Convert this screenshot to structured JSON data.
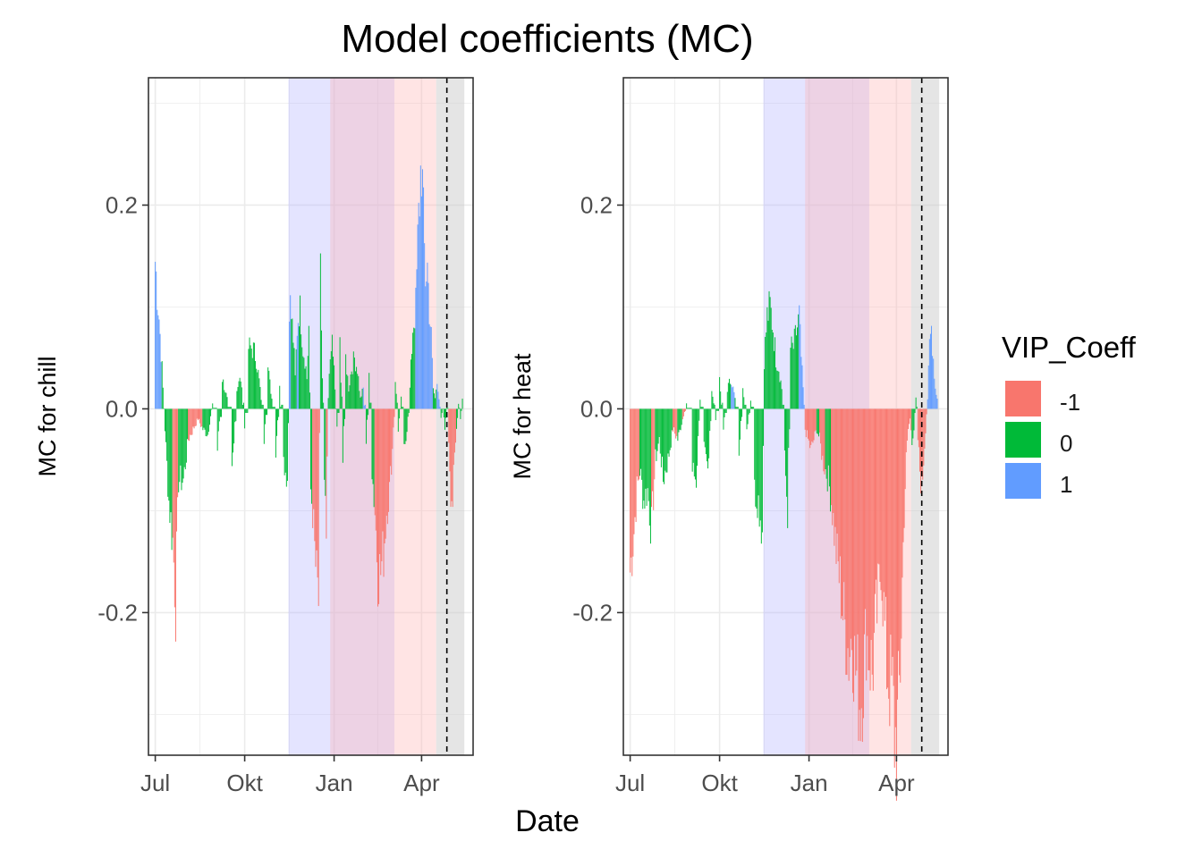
{
  "title": "Model coefficients (MC)",
  "xlabel": "Date",
  "legend": {
    "title": "VIP_Coeff",
    "placement": "right",
    "entries": [
      {
        "label": "-1",
        "color": "#F8766D"
      },
      {
        "label": "0",
        "color": "#00BA38"
      },
      {
        "label": "1",
        "color": "#619CFF"
      }
    ]
  },
  "colors": {
    "chill_phase": "#b3b3ff",
    "heat_phase": "#ffb3b3",
    "grey_band": "#cccccc",
    "grid": "#ebebeb",
    "panel_border": "#333333"
  },
  "chart_data": [
    {
      "type": "bar",
      "ylabel": "MC for chill",
      "x_unit": "day of year relative to Jan 1",
      "xlim": [
        -191,
        143
      ],
      "ylim": [
        -0.34,
        0.325
      ],
      "x_ticks": [
        {
          "label": "Jul",
          "x": -184
        },
        {
          "label": "Okt",
          "x": -92
        },
        {
          "label": "Jan",
          "x": 0
        },
        {
          "label": "Apr",
          "x": 90
        }
      ],
      "y_ticks": [
        {
          "label": "-0.2",
          "y": -0.2
        },
        {
          "label": "0.0",
          "y": 0
        },
        {
          "label": "0.2",
          "y": 0.2
        }
      ],
      "shaded_periods": [
        {
          "name": "chill",
          "from": -47,
          "to": 62
        },
        {
          "name": "heat",
          "from": -4,
          "to": 105
        },
        {
          "name": "grey",
          "from": 105,
          "to": 134
        }
      ],
      "vline_x": 116,
      "series_anchors": [
        [
          -184,
          0.145,
          1
        ],
        [
          -180,
          0.09,
          1
        ],
        [
          -177,
          0.04,
          0
        ],
        [
          -174,
          -0.02,
          0
        ],
        [
          -170,
          -0.09,
          0
        ],
        [
          -166,
          -0.13,
          -1
        ],
        [
          -163,
          -0.19,
          -1
        ],
        [
          -160,
          -0.07,
          0
        ],
        [
          -155,
          -0.07,
          0
        ],
        [
          -150,
          -0.03,
          -1
        ],
        [
          -145,
          -0.02,
          -1
        ],
        [
          -140,
          -0.01,
          -1
        ],
        [
          -135,
          -0.02,
          0
        ],
        [
          -130,
          -0.025,
          0
        ],
        [
          -125,
          0.005,
          0
        ],
        [
          -120,
          -0.04,
          0
        ],
        [
          -115,
          0.03,
          0
        ],
        [
          -110,
          0.01,
          0
        ],
        [
          -105,
          -0.06,
          0
        ],
        [
          -100,
          0.02,
          0
        ],
        [
          -96,
          0.03,
          0
        ],
        [
          -92,
          -0.02,
          0
        ],
        [
          -88,
          0.06,
          0
        ],
        [
          -84,
          0.06,
          0
        ],
        [
          -80,
          0.05,
          0
        ],
        [
          -76,
          0.02,
          0
        ],
        [
          -72,
          -0.03,
          0
        ],
        [
          -68,
          0.04,
          0
        ],
        [
          -64,
          0.01,
          0
        ],
        [
          -60,
          -0.04,
          0
        ],
        [
          -56,
          0.02,
          0
        ],
        [
          -52,
          -0.05,
          0
        ],
        [
          -48,
          -0.07,
          0
        ],
        [
          -46,
          0.11,
          1
        ],
        [
          -44,
          0.09,
          0
        ],
        [
          -42,
          0.07,
          0
        ],
        [
          -40,
          0.03,
          0
        ],
        [
          -38,
          0.08,
          1
        ],
        [
          -36,
          0.1,
          0
        ],
        [
          -34,
          0.09,
          0
        ],
        [
          -32,
          0.06,
          0
        ],
        [
          -30,
          0.05,
          0
        ],
        [
          -28,
          0.03,
          0
        ],
        [
          -26,
          0.08,
          0
        ],
        [
          -24,
          -0.08,
          0
        ],
        [
          -22,
          -0.1,
          -1
        ],
        [
          -20,
          -0.14,
          -1
        ],
        [
          -18,
          -0.17,
          -1
        ],
        [
          -16,
          -0.19,
          -1
        ],
        [
          -14,
          0.13,
          0
        ],
        [
          -12,
          0.03,
          0
        ],
        [
          -10,
          -0.08,
          0
        ],
        [
          -8,
          -0.13,
          -1
        ],
        [
          -6,
          0.01,
          0
        ],
        [
          -3,
          0.07,
          0
        ],
        [
          0,
          0.04,
          0
        ],
        [
          3,
          -0.02,
          0
        ],
        [
          6,
          0.06,
          0
        ],
        [
          9,
          -0.05,
          0
        ],
        [
          12,
          0.05,
          0
        ],
        [
          15,
          0.02,
          0
        ],
        [
          18,
          0.04,
          0
        ],
        [
          21,
          0.05,
          0
        ],
        [
          24,
          0.04,
          0
        ],
        [
          27,
          0.01,
          0
        ],
        [
          30,
          0.02,
          1
        ],
        [
          33,
          -0.03,
          0
        ],
        [
          36,
          0.03,
          0
        ],
        [
          39,
          -0.06,
          0
        ],
        [
          42,
          -0.1,
          -1
        ],
        [
          45,
          -0.16,
          -1
        ],
        [
          48,
          -0.16,
          -1
        ],
        [
          51,
          -0.14,
          -1
        ],
        [
          54,
          -0.1,
          -1
        ],
        [
          57,
          -0.08,
          -1
        ],
        [
          60,
          -0.04,
          -1
        ],
        [
          63,
          0.03,
          0
        ],
        [
          66,
          -0.02,
          0
        ],
        [
          69,
          0.01,
          0
        ],
        [
          72,
          -0.04,
          0
        ],
        [
          75,
          -0.02,
          0
        ],
        [
          78,
          0.02,
          0
        ],
        [
          81,
          0.08,
          0
        ],
        [
          84,
          0.1,
          1
        ],
        [
          86,
          0.16,
          1
        ],
        [
          88,
          0.21,
          1
        ],
        [
          90,
          0.25,
          1
        ],
        [
          92,
          0.18,
          1
        ],
        [
          94,
          0.13,
          1
        ],
        [
          96,
          0.14,
          1
        ],
        [
          98,
          0.1,
          1
        ],
        [
          100,
          0.07,
          1
        ],
        [
          102,
          0.02,
          0
        ],
        [
          104,
          0.01,
          0
        ],
        [
          106,
          0.03,
          1
        ],
        [
          108,
          0.01,
          1
        ],
        [
          110,
          -0.01,
          0
        ],
        [
          112,
          0.0,
          0
        ],
        [
          114,
          -0.02,
          0
        ],
        [
          116,
          0.005,
          0
        ],
        [
          118,
          -0.03,
          -1
        ],
        [
          120,
          -0.08,
          -1
        ],
        [
          122,
          -0.09,
          -1
        ],
        [
          124,
          -0.05,
          -1
        ],
        [
          126,
          -0.02,
          0
        ],
        [
          128,
          0.005,
          0
        ],
        [
          130,
          -0.01,
          0
        ],
        [
          132,
          0.01,
          0
        ]
      ]
    },
    {
      "type": "bar",
      "ylabel": "MC for heat",
      "x_unit": "day of year relative to Jan 1",
      "xlim": [
        -191,
        143
      ],
      "ylim": [
        -0.34,
        0.325
      ],
      "x_ticks": [
        {
          "label": "Jul",
          "x": -184
        },
        {
          "label": "Okt",
          "x": -92
        },
        {
          "label": "Jan",
          "x": 0
        },
        {
          "label": "Apr",
          "x": 90
        }
      ],
      "y_ticks": [
        {
          "label": "-0.2",
          "y": -0.2
        },
        {
          "label": "0.0",
          "y": 0
        },
        {
          "label": "0.2",
          "y": 0.2
        }
      ],
      "shaded_periods": [
        {
          "name": "chill",
          "from": -47,
          "to": 62
        },
        {
          "name": "heat",
          "from": -4,
          "to": 105
        },
        {
          "name": "grey",
          "from": 105,
          "to": 134
        }
      ],
      "vline_x": 116,
      "series_anchors": [
        [
          -184,
          -0.16,
          -1
        ],
        [
          -180,
          -0.12,
          -1
        ],
        [
          -177,
          -0.08,
          -1
        ],
        [
          -174,
          -0.06,
          0
        ],
        [
          -170,
          -0.09,
          0
        ],
        [
          -166,
          -0.08,
          0
        ],
        [
          -162,
          -0.12,
          -1
        ],
        [
          -158,
          -0.05,
          0
        ],
        [
          -154,
          -0.03,
          0
        ],
        [
          -150,
          -0.07,
          0
        ],
        [
          -145,
          -0.05,
          0
        ],
        [
          -140,
          -0.02,
          -1
        ],
        [
          -135,
          -0.03,
          0
        ],
        [
          -130,
          -0.01,
          -1
        ],
        [
          -126,
          0.005,
          0
        ],
        [
          -120,
          -0.06,
          0
        ],
        [
          -116,
          -0.07,
          0
        ],
        [
          -112,
          0.01,
          0
        ],
        [
          -108,
          -0.04,
          0
        ],
        [
          -104,
          -0.06,
          0
        ],
        [
          -100,
          0.02,
          0
        ],
        [
          -96,
          -0.01,
          0
        ],
        [
          -92,
          0.03,
          0
        ],
        [
          -88,
          -0.02,
          0
        ],
        [
          -84,
          0.02,
          0
        ],
        [
          -80,
          0.03,
          1
        ],
        [
          -76,
          0.01,
          0
        ],
        [
          -72,
          -0.04,
          0
        ],
        [
          -68,
          0.02,
          0
        ],
        [
          -64,
          -0.02,
          0
        ],
        [
          -60,
          0.01,
          0
        ],
        [
          -56,
          -0.08,
          0
        ],
        [
          -52,
          -0.09,
          0
        ],
        [
          -48,
          -0.12,
          0
        ],
        [
          -46,
          0.05,
          0
        ],
        [
          -43,
          0.09,
          0
        ],
        [
          -40,
          0.1,
          0
        ],
        [
          -37,
          0.08,
          0
        ],
        [
          -34,
          0.05,
          0
        ],
        [
          -31,
          0.04,
          0
        ],
        [
          -28,
          0.02,
          0
        ],
        [
          -25,
          -0.05,
          0
        ],
        [
          -22,
          -0.1,
          0
        ],
        [
          -19,
          0.06,
          0
        ],
        [
          -16,
          0.06,
          0
        ],
        [
          -14,
          0.07,
          0
        ],
        [
          -12,
          0.08,
          0
        ],
        [
          -10,
          0.09,
          1
        ],
        [
          -8,
          0.05,
          1
        ],
        [
          -6,
          0.02,
          1
        ],
        [
          -4,
          -0.02,
          -1
        ],
        [
          -1,
          -0.03,
          -1
        ],
        [
          2,
          -0.04,
          -1
        ],
        [
          5,
          -0.03,
          -1
        ],
        [
          8,
          -0.02,
          0
        ],
        [
          11,
          -0.03,
          -1
        ],
        [
          14,
          -0.05,
          -1
        ],
        [
          17,
          -0.06,
          0
        ],
        [
          20,
          -0.07,
          0
        ],
        [
          23,
          -0.09,
          -1
        ],
        [
          26,
          -0.12,
          -1
        ],
        [
          29,
          -0.15,
          -1
        ],
        [
          32,
          -0.17,
          -1
        ],
        [
          35,
          -0.2,
          -1
        ],
        [
          38,
          -0.22,
          -1
        ],
        [
          41,
          -0.24,
          -1
        ],
        [
          44,
          -0.22,
          -1
        ],
        [
          47,
          -0.25,
          -1
        ],
        [
          50,
          -0.27,
          -1
        ],
        [
          53,
          -0.29,
          -1
        ],
        [
          56,
          -0.26,
          -1
        ],
        [
          59,
          -0.22,
          -1
        ],
        [
          62,
          -0.24,
          -1
        ],
        [
          65,
          -0.26,
          -1
        ],
        [
          68,
          -0.22,
          -1
        ],
        [
          71,
          -0.19,
          -1
        ],
        [
          74,
          -0.15,
          -1
        ],
        [
          77,
          -0.2,
          -1
        ],
        [
          80,
          -0.25,
          -1
        ],
        [
          83,
          -0.27,
          -1
        ],
        [
          86,
          -0.28,
          -1
        ],
        [
          88,
          -0.32,
          -1
        ],
        [
          90,
          -0.33,
          -1
        ],
        [
          92,
          -0.3,
          -1
        ],
        [
          94,
          -0.25,
          -1
        ],
        [
          96,
          -0.17,
          -1
        ],
        [
          98,
          -0.1,
          -1
        ],
        [
          100,
          -0.05,
          -1
        ],
        [
          102,
          -0.02,
          -1
        ],
        [
          104,
          -0.01,
          -1
        ],
        [
          106,
          -0.03,
          0
        ],
        [
          108,
          -0.02,
          0
        ],
        [
          110,
          0.01,
          0
        ],
        [
          112,
          -0.03,
          -1
        ],
        [
          114,
          -0.06,
          -1
        ],
        [
          116,
          -0.08,
          -1
        ],
        [
          118,
          -0.05,
          -1
        ],
        [
          120,
          -0.02,
          -1
        ],
        [
          122,
          0.01,
          1
        ],
        [
          124,
          0.06,
          1
        ],
        [
          126,
          0.08,
          1
        ],
        [
          128,
          0.05,
          1
        ],
        [
          130,
          0.02,
          1
        ],
        [
          132,
          0.01,
          1
        ]
      ]
    }
  ]
}
